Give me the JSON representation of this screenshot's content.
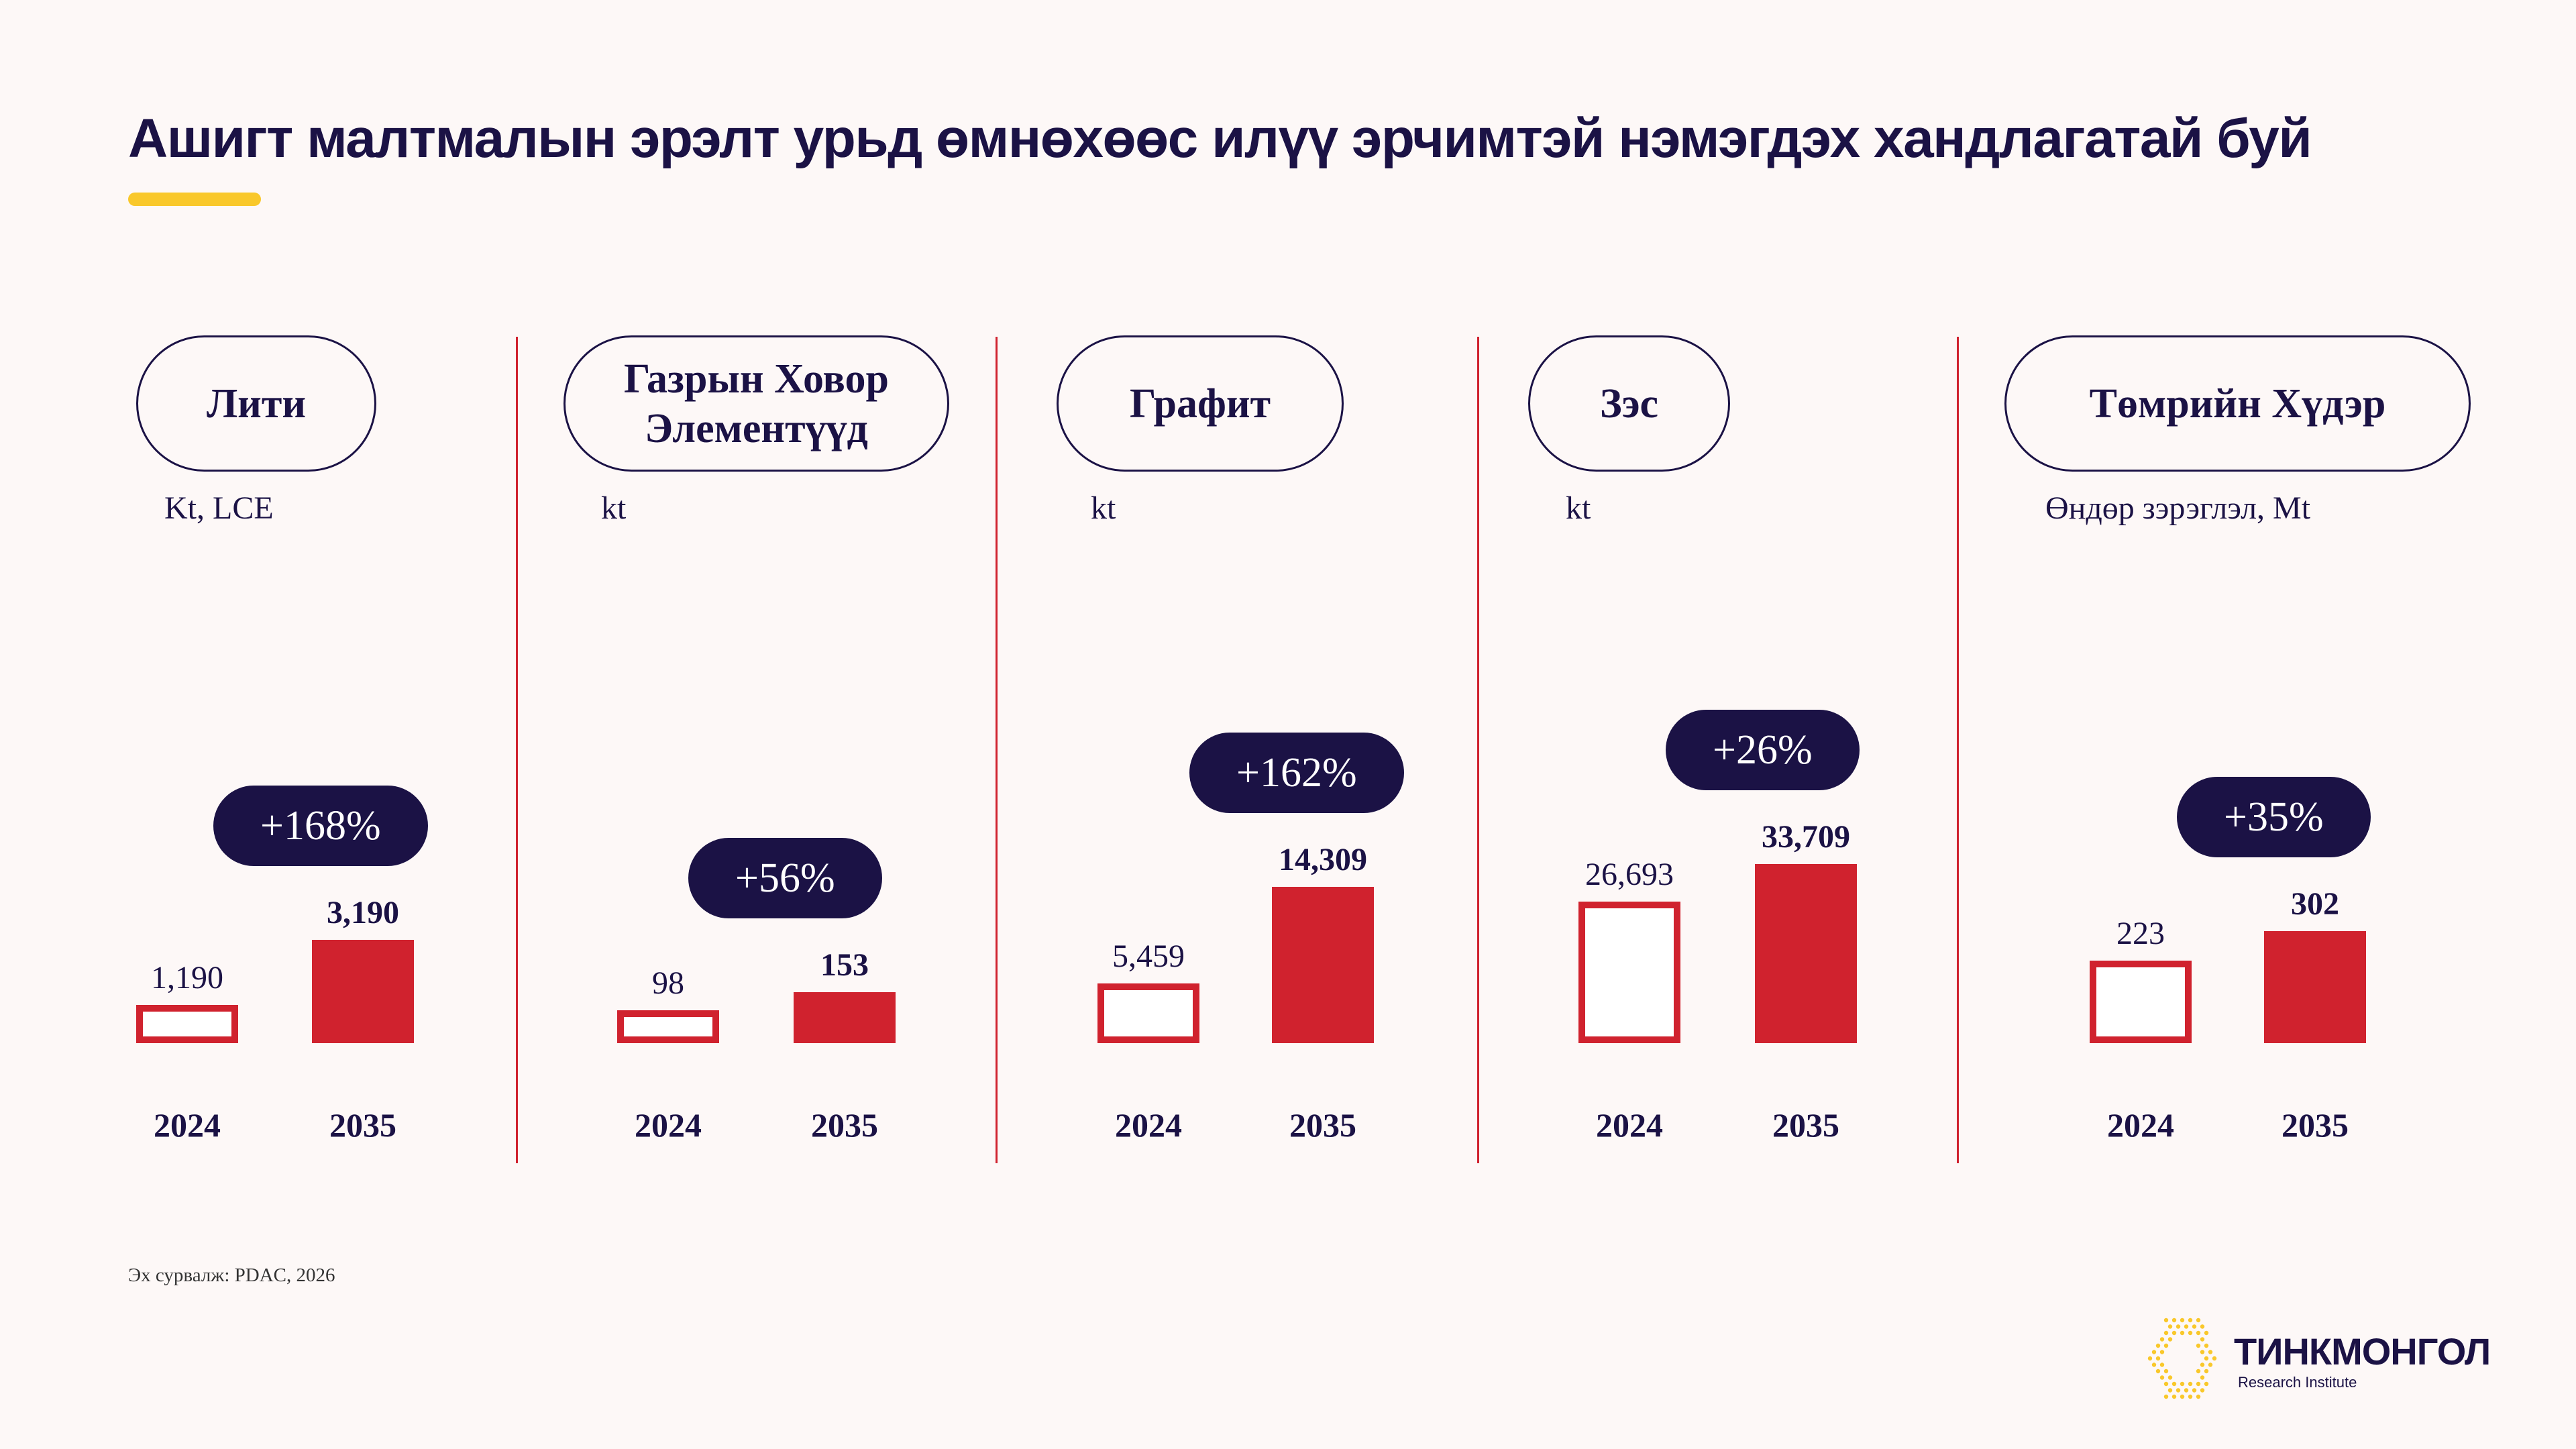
{
  "title": "Ашигт малтмалын эрэлт урьд өмнөхөөс илүү эрчимтэй нэмэгдэх хандлагатай буй",
  "source": "Эх сурвалж:  PDAC, 2026",
  "logo": {
    "name": "ТИНКМОНГОЛ",
    "subtitle": "Research Institute"
  },
  "colors": {
    "navy": "#1b1245",
    "red": "#d0222e",
    "yellow": "#f9c82b",
    "background": "#fdf8f7"
  },
  "chart_data": [
    {
      "type": "bar",
      "title": "Лити",
      "unit": "Kt, LCE",
      "categories": [
        "2024",
        "2035"
      ],
      "values": [
        1190,
        3190
      ],
      "labels": [
        "1,190",
        "3,190"
      ],
      "change": "+168%"
    },
    {
      "type": "bar",
      "title": "Газрын Ховор Элементүүд",
      "unit": "kt",
      "categories": [
        "2024",
        "2035"
      ],
      "values": [
        98,
        153
      ],
      "labels": [
        "98",
        "153"
      ],
      "change": "+56%"
    },
    {
      "type": "bar",
      "title": "Графит",
      "unit": "kt",
      "categories": [
        "2024",
        "2035"
      ],
      "values": [
        5459,
        14309
      ],
      "labels": [
        "5,459",
        "14,309"
      ],
      "change": "+162%"
    },
    {
      "type": "bar",
      "title": "Зэс",
      "unit": "kt",
      "categories": [
        "2024",
        "2035"
      ],
      "values": [
        26693,
        33709
      ],
      "labels": [
        "26,693",
        "33,709"
      ],
      "change": "+26%"
    },
    {
      "type": "bar",
      "title": "Төмрийн Хүдэр",
      "unit": "Өндөр зэрэглэл, Mt",
      "categories": [
        "2024",
        "2035"
      ],
      "values": [
        223,
        302
      ],
      "labels": [
        "223",
        "302"
      ],
      "change": "+35%"
    }
  ]
}
